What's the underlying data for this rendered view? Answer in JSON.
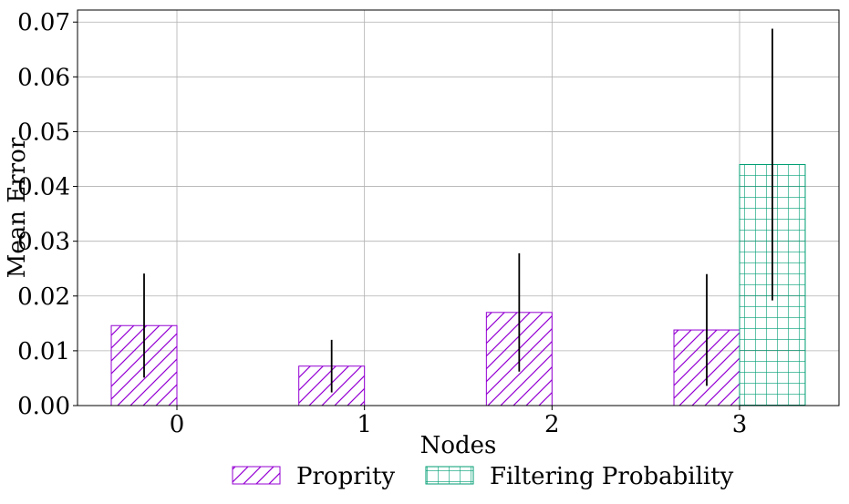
{
  "chart_data": {
    "type": "bar",
    "categories": [
      "0",
      "1",
      "2",
      "3"
    ],
    "series": [
      {
        "name": "Proprity",
        "values": [
          0.0146,
          0.0072,
          0.017,
          0.0138
        ],
        "errors": [
          0.0095,
          0.0048,
          0.0108,
          0.0102
        ],
        "color": "#9400D3",
        "hatch": "diagonal"
      },
      {
        "name": "Filtering Probability",
        "values": [
          null,
          null,
          null,
          0.044
        ],
        "errors": [
          null,
          null,
          null,
          0.0248
        ],
        "color": "#009E73",
        "hatch": "grid"
      }
    ],
    "xlabel": "Nodes",
    "ylabel": "Mean Error",
    "ylim": [
      0,
      0.0722
    ],
    "yticks": [
      0.0,
      0.01,
      0.02,
      0.03,
      0.04,
      0.05,
      0.06,
      0.07
    ],
    "ytick_labels": [
      "0.00",
      "0.01",
      "0.02",
      "0.03",
      "0.04",
      "0.05",
      "0.06",
      "0.07"
    ],
    "grid": true,
    "legend": "bottom-center"
  }
}
